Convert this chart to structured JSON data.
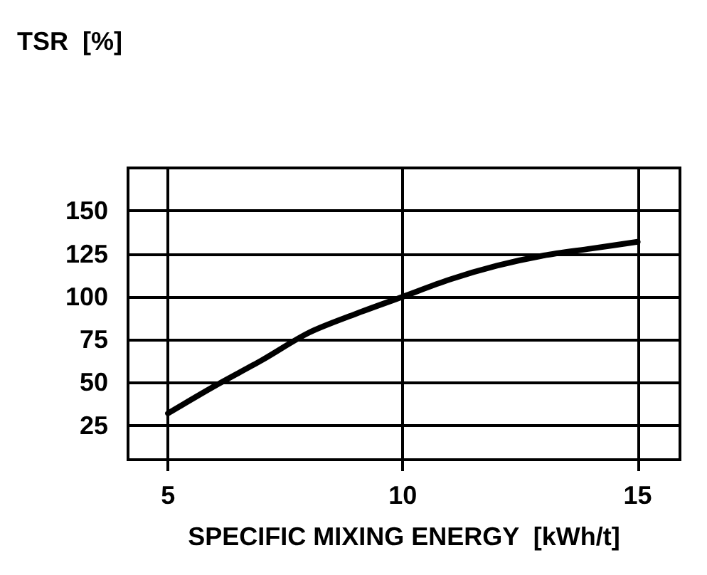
{
  "chart_data": {
    "type": "line",
    "ylabel": "TSR  [%]",
    "xlabel": "SPECIFIC MIXING ENERGY  [kWh/t]",
    "x": [
      5,
      6,
      7,
      8,
      9,
      10,
      11,
      12,
      13,
      14,
      15
    ],
    "series": [
      {
        "color": "#000000",
        "values": [
          32,
          48,
          63,
          79,
          90,
          100,
          110,
          118,
          124,
          128,
          132
        ]
      }
    ],
    "xlim": [
      4.15,
      15.9
    ],
    "xticks": [
      5,
      10,
      15
    ],
    "ylim": [
      5,
      175
    ],
    "yticks": [
      25,
      50,
      75,
      100,
      125,
      150
    ],
    "grid": true,
    "marker": "none",
    "line_style": "solid"
  }
}
